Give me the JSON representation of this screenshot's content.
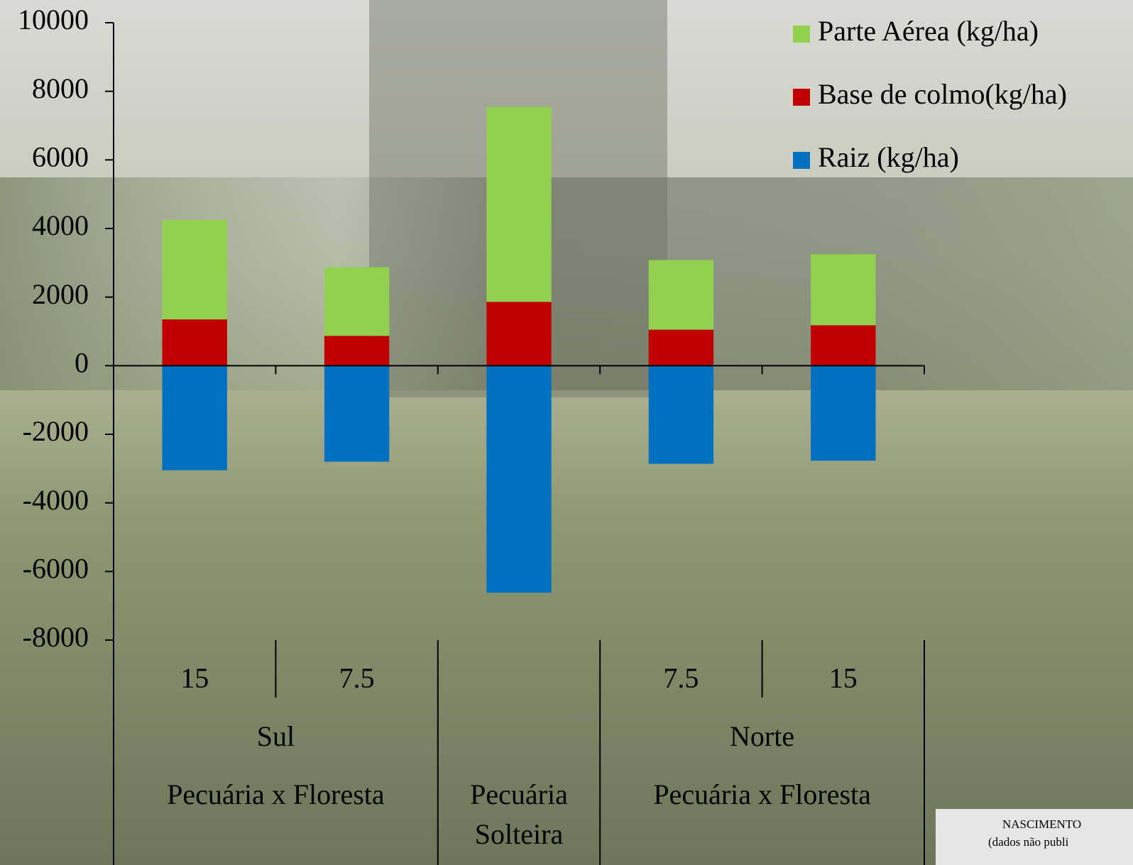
{
  "chart_data": {
    "type": "stacked_bar",
    "categories": [
      "15",
      "7.5",
      null,
      "7.5",
      "15"
    ],
    "group_levels": [
      [
        {
          "label": "Sul",
          "start": 0,
          "end": 1
        },
        {
          "label": "Norte",
          "start": 3,
          "end": 4
        }
      ],
      [
        {
          "label": [
            "Pecuária x Floresta"
          ],
          "start": 0,
          "end": 1
        },
        {
          "label": [
            "Pecuária",
            "Solteira"
          ],
          "start": 2,
          "end": 2
        },
        {
          "label": [
            "Pecuária x Floresta"
          ],
          "start": 3,
          "end": 4
        }
      ]
    ],
    "series": [
      {
        "name": "Parte Aérea (kg/ha)",
        "color": "#92d050",
        "values": [
          2900,
          2000,
          5680,
          2030,
          2070
        ]
      },
      {
        "name": "Base de colmo(kg/ha)",
        "color": "#c00000",
        "values": [
          1350,
          870,
          1860,
          1050,
          1180
        ]
      },
      {
        "name": "Raiz (kg/ha)",
        "color": "#0070c0",
        "values": [
          -3050,
          -2800,
          -6620,
          -2860,
          -2770
        ]
      }
    ],
    "ylim": [
      -8000,
      10000
    ],
    "yticks": [
      -8000,
      -6000,
      -4000,
      -2000,
      0,
      2000,
      4000,
      6000,
      8000,
      10000
    ],
    "legend": "top-right",
    "annotations": [
      "NASCIMENTO",
      "(dados não publi"
    ]
  }
}
